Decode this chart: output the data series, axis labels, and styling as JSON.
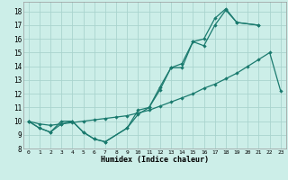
{
  "xlabel": "Humidex (Indice chaleur)",
  "bg_color": "#cceee8",
  "grid_color": "#aad4ce",
  "line_color": "#1a7a6e",
  "xlim": [
    -0.5,
    23.5
  ],
  "ylim": [
    8,
    18.7
  ],
  "yticks": [
    8,
    9,
    10,
    11,
    12,
    13,
    14,
    15,
    16,
    17,
    18
  ],
  "xticks": [
    0,
    1,
    2,
    3,
    4,
    5,
    6,
    7,
    8,
    9,
    10,
    11,
    12,
    13,
    14,
    15,
    16,
    17,
    18,
    19,
    20,
    21,
    22,
    23
  ],
  "series1_x": [
    0,
    1,
    2,
    3,
    4,
    5,
    6,
    7,
    9,
    10,
    11,
    12,
    13,
    14,
    15,
    16,
    17,
    18,
    19,
    21
  ],
  "series1_y": [
    10.0,
    9.5,
    9.2,
    10.0,
    10.0,
    9.2,
    8.7,
    8.5,
    9.5,
    10.8,
    11.0,
    12.5,
    13.9,
    13.9,
    15.8,
    15.5,
    17.0,
    18.1,
    17.2,
    17.0
  ],
  "series2_x": [
    0,
    1,
    2,
    3,
    4,
    5,
    6,
    7,
    9,
    10,
    11,
    12,
    13,
    14,
    15,
    16,
    17,
    18,
    19,
    21
  ],
  "series2_y": [
    10.0,
    9.5,
    9.2,
    9.8,
    10.0,
    9.2,
    8.7,
    8.5,
    9.5,
    10.5,
    11.0,
    12.3,
    13.9,
    14.2,
    15.8,
    16.0,
    17.5,
    18.2,
    17.2,
    17.0
  ],
  "series3_x": [
    0,
    1,
    2,
    3,
    4,
    5,
    6,
    7,
    8,
    9,
    10,
    11,
    12,
    13,
    14,
    15,
    16,
    17,
    18,
    19,
    20,
    21,
    22,
    23
  ],
  "series3_y": [
    10.0,
    9.8,
    9.7,
    9.8,
    9.9,
    10.0,
    10.1,
    10.2,
    10.3,
    10.4,
    10.6,
    10.8,
    11.1,
    11.4,
    11.7,
    12.0,
    12.4,
    12.7,
    13.1,
    13.5,
    14.0,
    14.5,
    15.0,
    12.2
  ]
}
